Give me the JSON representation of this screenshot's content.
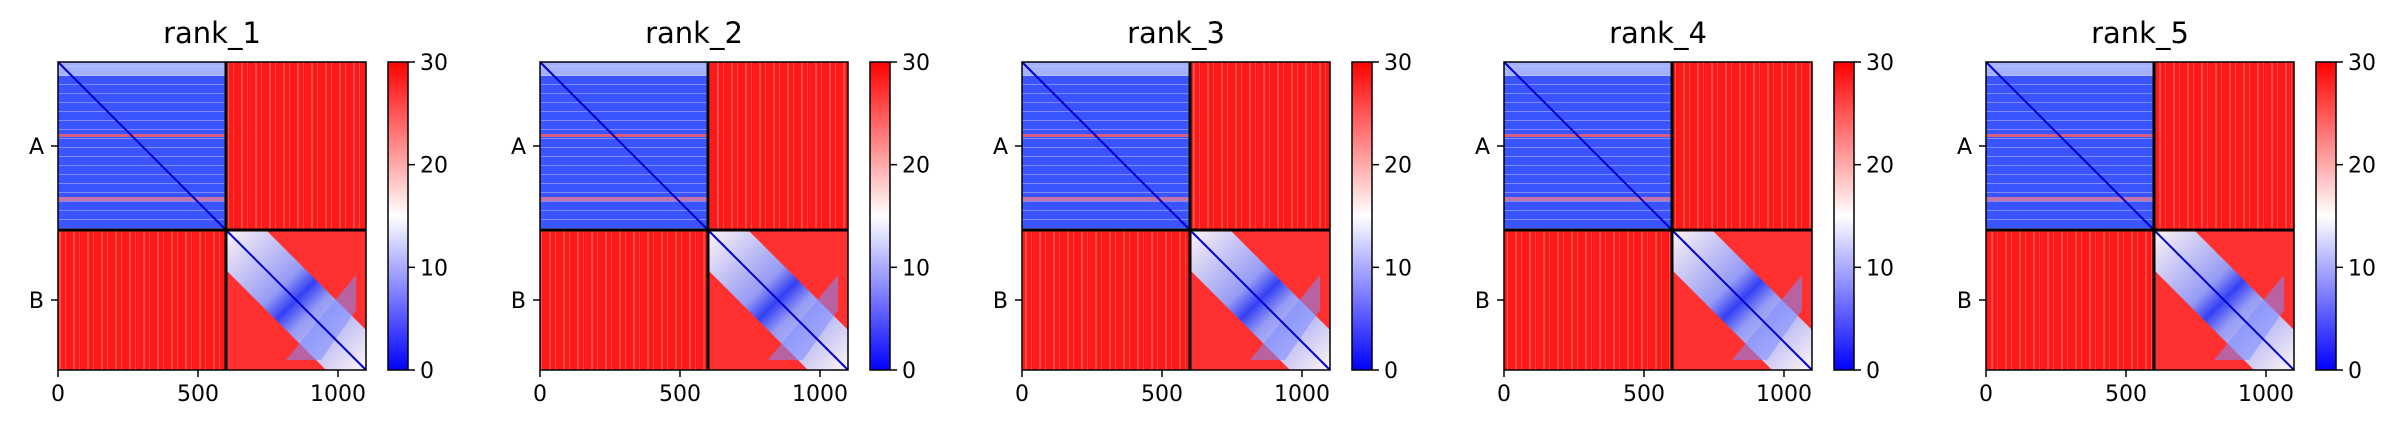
{
  "chart_data": {
    "type": "heatmap",
    "colorbar": {
      "min": 0,
      "max": 30,
      "ticks": [
        0,
        10,
        20,
        30
      ],
      "colormap": [
        "#0000ff",
        "#ffffff",
        "#ff0000"
      ]
    },
    "x_ticks": [
      0,
      500,
      1000
    ],
    "x_range": [
      0,
      1100
    ],
    "chain_boundary": 600,
    "y_labels": [
      "A",
      "B"
    ],
    "panels": [
      {
        "title": "rank_1"
      },
      {
        "title": "rank_2"
      },
      {
        "title": "rank_3"
      },
      {
        "title": "rank_4"
      },
      {
        "title": "rank_5"
      }
    ]
  }
}
